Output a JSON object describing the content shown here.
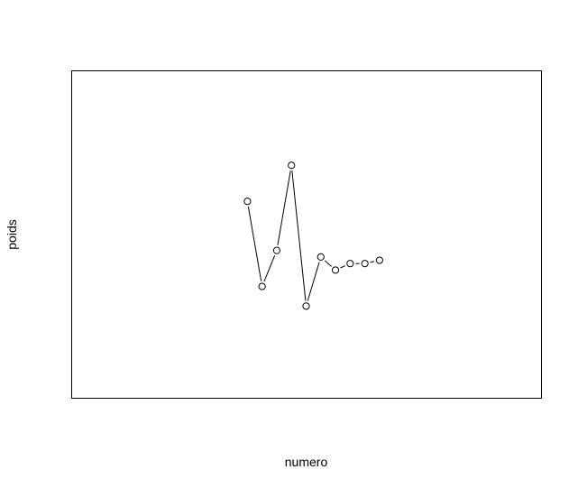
{
  "chart_data": {
    "type": "line",
    "style": "both-points-and-lines",
    "xlabel": "numero",
    "ylabel": "poids",
    "xlim": [
      0,
      32
    ],
    "ylim": [
      0,
      100
    ],
    "axes_visible": false,
    "grid": false,
    "legend": "none",
    "series": [
      {
        "x": [
          12,
          13,
          14,
          15,
          16,
          17,
          18,
          19,
          20,
          21
        ],
        "y": [
          60,
          34,
          45,
          71,
          28,
          43,
          39,
          41,
          41,
          42
        ]
      }
    ],
    "colors": {
      "line": "#000000",
      "point_fill": "#ffffff",
      "frame": "#000000"
    }
  }
}
